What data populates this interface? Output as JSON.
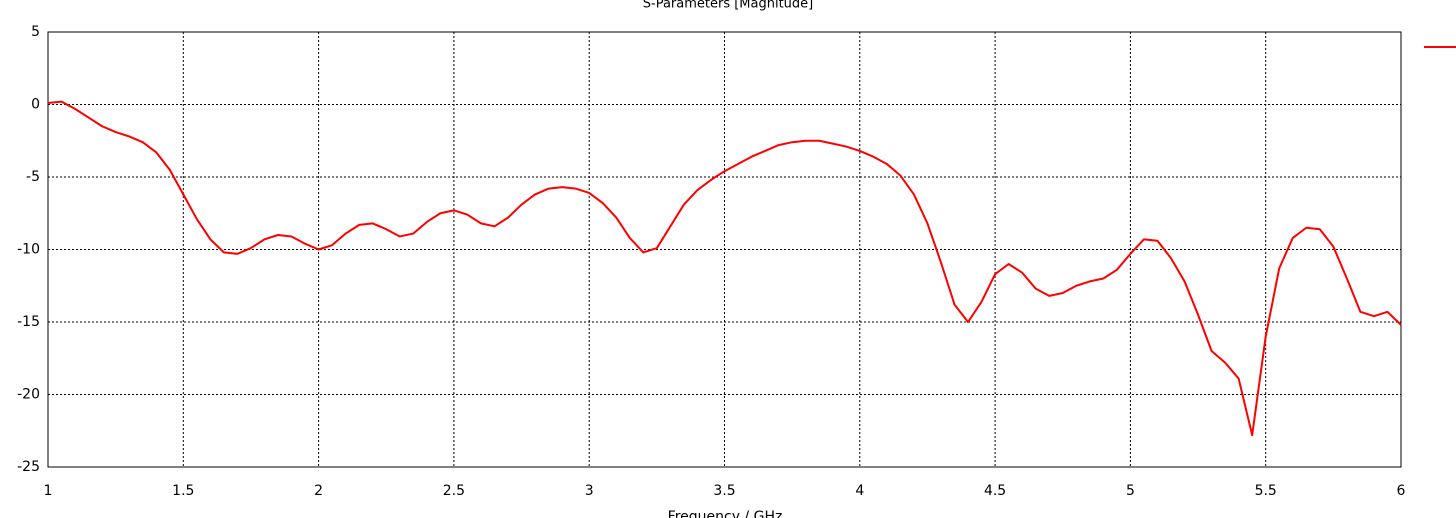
{
  "chart_data": {
    "type": "line",
    "title": "S-Parameters [Magnitude]",
    "x_label": "Frequency / GHz",
    "x": [
      1.0,
      1.05,
      1.1,
      1.15,
      1.2,
      1.25,
      1.3,
      1.35,
      1.4,
      1.45,
      1.5,
      1.55,
      1.6,
      1.65,
      1.7,
      1.75,
      1.8,
      1.85,
      1.9,
      1.95,
      2.0,
      2.05,
      2.1,
      2.15,
      2.2,
      2.25,
      2.3,
      2.35,
      2.4,
      2.45,
      2.5,
      2.55,
      2.6,
      2.65,
      2.7,
      2.75,
      2.8,
      2.85,
      2.9,
      2.95,
      3.0,
      3.05,
      3.1,
      3.15,
      3.2,
      3.25,
      3.3,
      3.35,
      3.4,
      3.45,
      3.5,
      3.55,
      3.6,
      3.65,
      3.7,
      3.75,
      3.8,
      3.85,
      3.9,
      3.95,
      4.0,
      4.05,
      4.1,
      4.15,
      4.2,
      4.25,
      4.3,
      4.35,
      4.4,
      4.45,
      4.5,
      4.55,
      4.6,
      4.65,
      4.7,
      4.75,
      4.8,
      4.85,
      4.9,
      4.95,
      5.0,
      5.05,
      5.1,
      5.15,
      5.2,
      5.25,
      5.3,
      5.35,
      5.4,
      5.45,
      5.5,
      5.55,
      5.6,
      5.65,
      5.7,
      5.75,
      5.8,
      5.85,
      5.9,
      5.95,
      6.0
    ],
    "series": [
      {
        "color": "#ff0000",
        "values": [
          0.1,
          0.2,
          -0.3,
          -0.9,
          -1.5,
          -1.9,
          -2.2,
          -2.6,
          -3.3,
          -4.5,
          -6.2,
          -7.9,
          -9.3,
          -10.2,
          -10.3,
          -9.9,
          -9.3,
          -9.0,
          -9.1,
          -9.6,
          -10.0,
          -9.7,
          -8.9,
          -8.3,
          -8.2,
          -8.6,
          -9.1,
          -8.9,
          -8.1,
          -7.5,
          -7.3,
          -7.6,
          -8.2,
          -8.4,
          -7.8,
          -6.9,
          -6.2,
          -5.8,
          -5.7,
          -5.8,
          -6.1,
          -6.8,
          -7.8,
          -9.2,
          -10.2,
          -9.9,
          -8.4,
          -6.9,
          -5.9,
          -5.2,
          -4.6,
          -4.1,
          -3.6,
          -3.2,
          -2.8,
          -2.6,
          -2.5,
          -2.5,
          -2.7,
          -2.9,
          -3.2,
          -3.6,
          -4.1,
          -4.9,
          -6.2,
          -8.2,
          -10.9,
          -13.8,
          -15.0,
          -13.6,
          -11.7,
          -11.0,
          -11.6,
          -12.7,
          -13.2,
          -13.0,
          -12.5,
          -12.2,
          -12.0,
          -11.4,
          -10.3,
          -9.3,
          -9.4,
          -10.6,
          -12.2,
          -14.5,
          -17.0,
          -17.8,
          -18.9,
          -22.8,
          -16.0,
          -11.3,
          -9.2,
          -8.5,
          -8.6,
          -9.8,
          -12.0,
          -14.3,
          -14.6,
          -14.3,
          -15.2
        ]
      }
    ],
    "xlim": [
      1,
      6
    ],
    "xticks": [
      1,
      1.5,
      2,
      2.5,
      3,
      3.5,
      4,
      4.5,
      5,
      5.5,
      6
    ],
    "ylim": [
      -25,
      5
    ],
    "yticks": [
      -25,
      -20,
      -15,
      -10,
      -5,
      0,
      5
    ],
    "grid": true
  }
}
